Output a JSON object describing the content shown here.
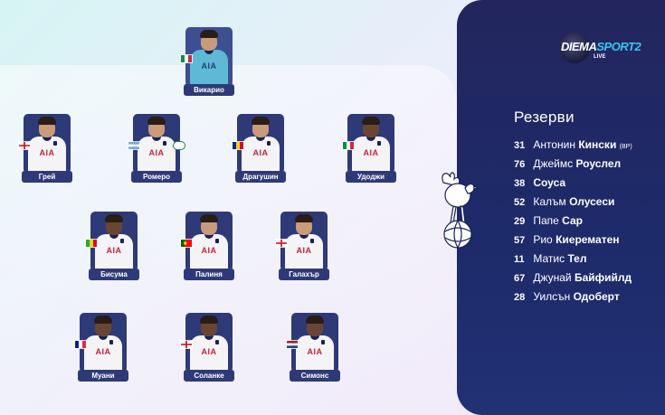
{
  "broadcaster": {
    "brand_main": "DIEMA",
    "brand_accent": "SPORT2",
    "live_label": "LIVE"
  },
  "lineup": {
    "goalkeeper": {
      "name": "Викарио",
      "flag": "italy-flag"
    },
    "defenders": [
      {
        "name": "Грей",
        "flag": "england-flag"
      },
      {
        "name": "Ромеро",
        "flag": "argentina-flag"
      },
      {
        "name": "Драгушин",
        "flag": "romania-flag"
      },
      {
        "name": "Удоджи",
        "flag": "italy-flag"
      }
    ],
    "midfielders": [
      {
        "name": "Бисума",
        "flag": "mali-flag"
      },
      {
        "name": "Палиня",
        "flag": "portugal-flag"
      },
      {
        "name": "Галахър",
        "flag": "england-flag"
      }
    ],
    "forwards": [
      {
        "name": "Муани",
        "flag": "france-flag"
      },
      {
        "name": "Соланке",
        "flag": "england-flag"
      },
      {
        "name": "Симонс",
        "flag": "netherlands-flag"
      }
    ],
    "kit_sponsor": "AIA"
  },
  "substitutes": {
    "title": "Резерви",
    "players": [
      {
        "number": "31",
        "first": "Антонин",
        "last": "Кински",
        "note": "(ВР)"
      },
      {
        "number": "76",
        "first": "Джеймс",
        "last": "Роуслел",
        "note": ""
      },
      {
        "number": "38",
        "first": "",
        "last": "Соуса",
        "note": ""
      },
      {
        "number": "52",
        "first": "Калъм",
        "last": "Олусеси",
        "note": ""
      },
      {
        "number": "29",
        "first": "Папе",
        "last": "Сар",
        "note": ""
      },
      {
        "number": "57",
        "first": "Рио",
        "last": "Киерематен",
        "note": ""
      },
      {
        "number": "11",
        "first": "Матис",
        "last": "Тел",
        "note": ""
      },
      {
        "number": "67",
        "first": "Джунай",
        "last": "Байфийлд",
        "note": ""
      },
      {
        "number": "28",
        "first": "Уилсън",
        "last": "Одоберт",
        "note": ""
      }
    ]
  },
  "colors": {
    "panel_navy": "#23265e",
    "card_navy": "#2e3a78",
    "brand_accent": "#39c6f2",
    "sponsor_red": "#c8203a"
  },
  "icons": {
    "club_crest": "cockerel-crest-icon"
  }
}
